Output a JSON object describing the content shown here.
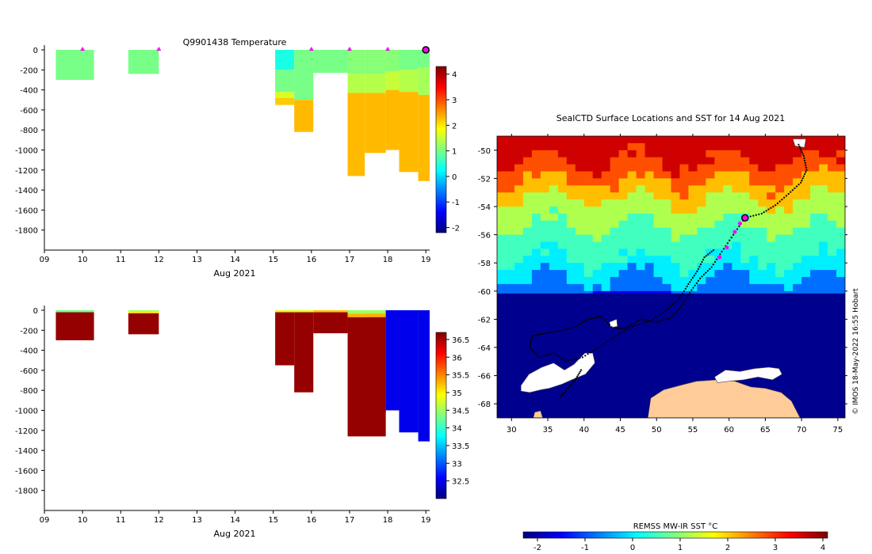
{
  "figure": {
    "credit": "© IMOS 18-May-2022 16:55 Hobart",
    "shared_xlabel": "Aug 2021",
    "x_ticks": [
      "09",
      "10",
      "11",
      "12",
      "13",
      "14",
      "15",
      "16",
      "17",
      "18",
      "19"
    ],
    "y_ticks": [
      "0",
      "-200",
      "-400",
      "-600",
      "-800",
      "-1000",
      "-1200",
      "-1400",
      "-1600",
      "-1800"
    ]
  },
  "colors": {
    "jet": [
      "#00007f",
      "#0000ff",
      "#007fff",
      "#00ffff",
      "#7fff7f",
      "#ffff00",
      "#ff7f00",
      "#ff0000",
      "#7f0000"
    ],
    "surface_marker": "#ff00ff",
    "land": "#ffcc99",
    "ice": "#ffffff",
    "track": "#000000"
  },
  "chart_data": [
    {
      "type": "heatmap",
      "title": "Q9901438  Temperature",
      "xlabel": "Aug 2021",
      "ylabel": "",
      "x_range": [
        9,
        19.1
      ],
      "y_range": [
        -2000,
        0
      ],
      "colorbar": {
        "range": [
          -2.2,
          4.3
        ],
        "ticks": [
          "-2",
          "-1",
          "0",
          "1",
          "2",
          "3",
          "4"
        ]
      },
      "surface_markers_day": [
        10,
        12,
        16,
        17,
        18
      ],
      "current_day": 19,
      "profiles": [
        {
          "x0": 9.3,
          "x1": 10.3,
          "bottom": -300,
          "layers": [
            {
              "top": 0,
              "bottom": -300,
              "value": 1.0
            }
          ]
        },
        {
          "x0": 11.2,
          "x1": 12.0,
          "bottom": -240,
          "layers": [
            {
              "top": 0,
              "bottom": -240,
              "value": 1.0
            }
          ]
        },
        {
          "x0": 15.05,
          "x1": 15.55,
          "bottom": -550,
          "layers": [
            {
              "top": 0,
              "bottom": -200,
              "value": 0.4
            },
            {
              "top": -200,
              "bottom": -420,
              "value": 1.0
            },
            {
              "top": -420,
              "bottom": -480,
              "value": 1.6
            },
            {
              "top": -480,
              "bottom": -550,
              "value": 2.2
            }
          ]
        },
        {
          "x0": 15.55,
          "x1": 16.05,
          "bottom": -820,
          "layers": [
            {
              "top": 0,
              "bottom": -500,
              "value": 1.0
            },
            {
              "top": -500,
              "bottom": -820,
              "value": 2.3
            }
          ]
        },
        {
          "x0": 16.05,
          "x1": 16.95,
          "bottom": -230,
          "layers": [
            {
              "top": 0,
              "bottom": -230,
              "value": 1.0
            }
          ]
        },
        {
          "x0": 16.95,
          "x1": 17.4,
          "bottom": -1260,
          "layers": [
            {
              "top": 0,
              "bottom": -240,
              "value": 1.1
            },
            {
              "top": -240,
              "bottom": -430,
              "value": 1.4
            },
            {
              "top": -430,
              "bottom": -1260,
              "value": 2.3
            }
          ]
        },
        {
          "x0": 17.4,
          "x1": 17.95,
          "bottom": -1030,
          "layers": [
            {
              "top": 0,
              "bottom": -240,
              "value": 1.1
            },
            {
              "top": -240,
              "bottom": -430,
              "value": 1.4
            },
            {
              "top": -430,
              "bottom": -1030,
              "value": 2.3
            }
          ]
        },
        {
          "x0": 17.95,
          "x1": 18.3,
          "bottom": -1000,
          "layers": [
            {
              "top": 0,
              "bottom": -220,
              "value": 1.1
            },
            {
              "top": -220,
              "bottom": -400,
              "value": 1.5
            },
            {
              "top": -400,
              "bottom": -1000,
              "value": 2.3
            }
          ]
        },
        {
          "x0": 18.3,
          "x1": 18.8,
          "bottom": -1220,
          "layers": [
            {
              "top": 0,
              "bottom": -200,
              "value": 1.0
            },
            {
              "top": -200,
              "bottom": -420,
              "value": 1.4
            },
            {
              "top": -420,
              "bottom": -1220,
              "value": 2.3
            }
          ]
        },
        {
          "x0": 18.8,
          "x1": 19.1,
          "bottom": -1310,
          "layers": [
            {
              "top": 0,
              "bottom": -180,
              "value": 1.0
            },
            {
              "top": -180,
              "bottom": -450,
              "value": 1.3
            },
            {
              "top": -450,
              "bottom": -1310,
              "value": 2.3
            }
          ]
        }
      ]
    },
    {
      "type": "heatmap",
      "title": "",
      "xlabel": "Aug 2021",
      "ylabel": "",
      "x_range": [
        9,
        19.1
      ],
      "y_range": [
        -2000,
        0
      ],
      "colorbar": {
        "range": [
          32.0,
          36.7
        ],
        "ticks": [
          "32.5",
          "33",
          "33.5",
          "34",
          "34.5",
          "35",
          "35.5",
          "36",
          "36.5"
        ]
      },
      "profiles": [
        {
          "x0": 9.3,
          "x1": 10.3,
          "bottom": -300,
          "layers": [
            {
              "top": 0,
              "bottom": -20,
              "value": 34.3
            },
            {
              "top": -20,
              "bottom": -300,
              "value": 36.6
            }
          ]
        },
        {
          "x0": 11.2,
          "x1": 12.0,
          "bottom": -240,
          "layers": [
            {
              "top": 0,
              "bottom": -15,
              "value": 34.5
            },
            {
              "top": -15,
              "bottom": -30,
              "value": 35.0
            },
            {
              "top": -30,
              "bottom": -240,
              "value": 36.6
            }
          ]
        },
        {
          "x0": 15.05,
          "x1": 15.55,
          "bottom": -550,
          "layers": [
            {
              "top": 0,
              "bottom": -20,
              "value": 34.8
            },
            {
              "top": -20,
              "bottom": -550,
              "value": 36.6
            }
          ]
        },
        {
          "x0": 15.55,
          "x1": 16.05,
          "bottom": -820,
          "layers": [
            {
              "top": 0,
              "bottom": -20,
              "value": 34.8
            },
            {
              "top": -20,
              "bottom": -820,
              "value": 36.6
            }
          ]
        },
        {
          "x0": 16.05,
          "x1": 16.95,
          "bottom": -230,
          "layers": [
            {
              "top": 0,
              "bottom": -20,
              "value": 35.2
            },
            {
              "top": -20,
              "bottom": -230,
              "value": 36.6
            }
          ]
        },
        {
          "x0": 16.95,
          "x1": 17.95,
          "bottom": -1260,
          "layers": [
            {
              "top": 0,
              "bottom": -35,
              "value": 34.5
            },
            {
              "top": -35,
              "bottom": -70,
              "value": 35.3
            },
            {
              "top": -70,
              "bottom": -1260,
              "value": 36.6
            }
          ]
        },
        {
          "x0": 17.4,
          "x1": 17.95,
          "bottom": -1030,
          "layers": [
            {
              "top": 0,
              "bottom": -35,
              "value": 34.5
            },
            {
              "top": -35,
              "bottom": -70,
              "value": 35.3
            },
            {
              "top": -70,
              "bottom": -1030,
              "value": 36.6
            }
          ]
        },
        {
          "x0": 17.95,
          "x1": 18.3,
          "bottom": -1000,
          "layers": [
            {
              "top": 0,
              "bottom": -1000,
              "value": 32.5
            }
          ]
        },
        {
          "x0": 18.3,
          "x1": 18.8,
          "bottom": -1220,
          "layers": [
            {
              "top": 0,
              "bottom": -1220,
              "value": 32.5
            }
          ]
        },
        {
          "x0": 18.8,
          "x1": 19.1,
          "bottom": -1310,
          "layers": [
            {
              "top": 0,
              "bottom": -1310,
              "value": 32.5
            }
          ]
        }
      ]
    },
    {
      "type": "heatmap",
      "title": "SealCTD Surface Locations and SST for 14 Aug 2021",
      "xlabel": "",
      "ylabel": "",
      "x_range": [
        28,
        76
      ],
      "y_range": [
        -69,
        -49
      ],
      "x_ticks": [
        "30",
        "35",
        "40",
        "45",
        "50",
        "55",
        "60",
        "65",
        "70",
        "75"
      ],
      "y_ticks": [
        "-50",
        "-52",
        "-54",
        "-56",
        "-58",
        "-60",
        "-62",
        "-64",
        "-66",
        "-68"
      ],
      "colorbar": {
        "label": "REMSS MW-IR SST °C",
        "range": [
          -2.3,
          4.1
        ],
        "ticks": [
          "-2",
          "-1",
          "0",
          "1",
          "2",
          "3",
          "4"
        ]
      },
      "sst_bands": [
        {
          "lat_top": -49,
          "value": 3.6
        },
        {
          "lat_top": -50.5,
          "value": 2.8
        },
        {
          "lat_top": -52,
          "value": 2.1
        },
        {
          "lat_top": -53.2,
          "value": 1.2
        },
        {
          "lat_top": -55.2,
          "value": 0.5
        },
        {
          "lat_top": -57.5,
          "value": 0.0
        },
        {
          "lat_top": -58.8,
          "value": -0.8
        }
      ],
      "sea_ice_edge_lat": -60.0,
      "current_position": {
        "lon": 62.2,
        "lat": -54.8
      },
      "surface_locations": [
        {
          "lon": 60.8,
          "lat": -55.8
        },
        {
          "lon": 61.5,
          "lat": -55.2
        },
        {
          "lon": 59.7,
          "lat": -56.9
        },
        {
          "lon": 58.7,
          "lat": -57.6
        }
      ],
      "track": [
        [
          69.6,
          -49.6
        ],
        [
          70.3,
          -50.4
        ],
        [
          70.7,
          -51.4
        ],
        [
          69.9,
          -52.3
        ],
        [
          68.2,
          -53.1
        ],
        [
          66.4,
          -53.9
        ],
        [
          64.5,
          -54.5
        ],
        [
          62.2,
          -54.8
        ],
        [
          60.6,
          -56.0
        ],
        [
          59.0,
          -57.2
        ],
        [
          57.6,
          -58.3
        ],
        [
          56.0,
          -59.1
        ],
        [
          54.6,
          -60.1
        ],
        [
          53.4,
          -61.1
        ],
        [
          51.9,
          -61.9
        ],
        [
          50.0,
          -62.2
        ],
        [
          47.8,
          -62.0
        ],
        [
          45.9,
          -62.6
        ],
        [
          44.1,
          -62.7
        ],
        [
          42.3,
          -61.8
        ],
        [
          40.6,
          -62.0
        ],
        [
          38.9,
          -62.5
        ],
        [
          36.9,
          -62.8
        ],
        [
          34.6,
          -63.0
        ],
        [
          32.8,
          -63.2
        ],
        [
          32.5,
          -64.0
        ],
        [
          33.8,
          -64.7
        ],
        [
          35.8,
          -64.4
        ],
        [
          37.5,
          -65.0
        ],
        [
          39.8,
          -64.7
        ],
        [
          42.0,
          -64.0
        ],
        [
          44.4,
          -63.2
        ],
        [
          46.7,
          -62.5
        ],
        [
          49.2,
          -62.1
        ],
        [
          51.3,
          -61.4
        ],
        [
          53.2,
          -60.5
        ],
        [
          54.4,
          -59.5
        ],
        [
          55.6,
          -58.6
        ],
        [
          56.6,
          -57.6
        ],
        [
          58.1,
          -57.0
        ]
      ],
      "track_branch": [
        [
          39.6,
          -65.6
        ],
        [
          38.8,
          -66.3
        ],
        [
          37.6,
          -67.0
        ],
        [
          36.6,
          -67.6
        ]
      ],
      "land": [
        {
          "name": "antarctica",
          "outline": [
            [
              48.8,
              -69
            ],
            [
              49.2,
              -67.6
            ],
            [
              51.0,
              -67.0
            ],
            [
              53.2,
              -66.7
            ],
            [
              55.5,
              -66.4
            ],
            [
              58.3,
              -66.3
            ],
            [
              60.8,
              -66.4
            ],
            [
              63.0,
              -66.8
            ],
            [
              65.0,
              -66.9
            ],
            [
              67.2,
              -67.2
            ],
            [
              68.6,
              -67.8
            ],
            [
              69.4,
              -68.6
            ],
            [
              69.8,
              -69
            ]
          ]
        },
        {
          "name": "islet",
          "outline": [
            [
              33.0,
              -69
            ],
            [
              33.2,
              -68.6
            ],
            [
              34.0,
              -68.5
            ],
            [
              34.3,
              -69
            ]
          ]
        }
      ],
      "ice": [
        {
          "name": "polynya-west",
          "outline": [
            [
              31.3,
              -66.7
            ],
            [
              32.4,
              -65.9
            ],
            [
              34.2,
              -65.4
            ],
            [
              35.8,
              -65.1
            ],
            [
              37.3,
              -65.6
            ],
            [
              38.6,
              -65.2
            ],
            [
              40.1,
              -64.4
            ],
            [
              41.2,
              -64.4
            ],
            [
              41.5,
              -65.1
            ],
            [
              40.2,
              -65.9
            ],
            [
              38.3,
              -66.3
            ],
            [
              37.0,
              -66.6
            ],
            [
              35.2,
              -66.9
            ],
            [
              34.1,
              -67.0
            ],
            [
              32.5,
              -67.2
            ],
            [
              31.3,
              -67.1
            ]
          ]
        },
        {
          "name": "polynya-east",
          "outline": [
            [
              58.0,
              -66.1
            ],
            [
              59.5,
              -65.6
            ],
            [
              61.5,
              -65.7
            ],
            [
              63.5,
              -65.5
            ],
            [
              65.5,
              -65.4
            ],
            [
              66.9,
              -65.5
            ],
            [
              67.3,
              -65.9
            ],
            [
              66.0,
              -66.3
            ],
            [
              64.0,
              -66.1
            ],
            [
              62.0,
              -66.3
            ],
            [
              60.0,
              -66.4
            ],
            [
              58.4,
              -66.5
            ]
          ]
        },
        {
          "name": "patch-south",
          "outline": [
            [
              43.5,
              -62.2
            ],
            [
              44.5,
              -62.0
            ],
            [
              44.6,
              -62.5
            ],
            [
              43.7,
              -62.6
            ]
          ]
        },
        {
          "name": "patch-ne",
          "outline": [
            [
              68.8,
              -49.2
            ],
            [
              70.6,
              -49.2
            ],
            [
              70.4,
              -49.8
            ],
            [
              69.1,
              -49.7
            ]
          ]
        }
      ]
    }
  ]
}
